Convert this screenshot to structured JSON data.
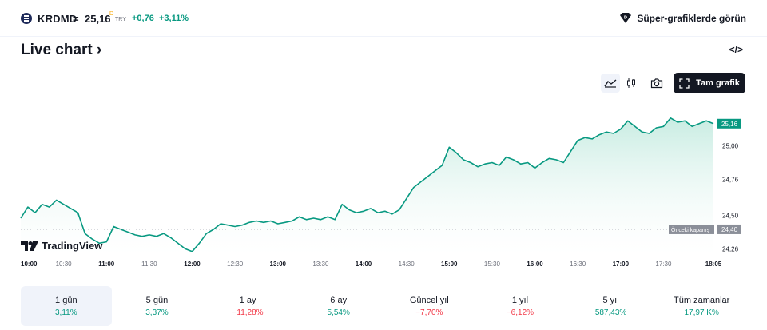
{
  "header": {
    "ticker": "KRDMD",
    "separator": "=",
    "price": "25,16",
    "delayed_mark": "D",
    "currency": "TRY",
    "change": "+0,76",
    "change_pct": "+3,11%",
    "super_charts_label": "Süper-grafiklerde görün"
  },
  "title": "Live chart",
  "title_chevron": "›",
  "embed_label": "</>",
  "toolbar": {
    "full_chart_label": "Tam grafik",
    "icons": [
      "area-chart-icon",
      "candles-icon",
      "camera-icon",
      "fullscreen-icon"
    ]
  },
  "colors": {
    "line": "#089981",
    "fill_top": "#c8ece2",
    "up": "#089981",
    "down": "#f23645",
    "text": "#131722"
  },
  "chart_data": {
    "type": "area",
    "x_ticks": [
      "10:00",
      "10:30",
      "11:00",
      "11:30",
      "12:00",
      "12:30",
      "13:00",
      "13:30",
      "14:00",
      "14:30",
      "15:00",
      "15:30",
      "16:00",
      "16:30",
      "17:00",
      "17:30",
      "18:05"
    ],
    "bold_ticks": [
      "10:00",
      "11:00",
      "12:00",
      "13:00",
      "14:00",
      "15:00",
      "16:00",
      "17:00",
      "18:05"
    ],
    "y_ticks": [
      "25,00",
      "24,76",
      "24,50",
      "24,26"
    ],
    "ylim": [
      24.21,
      25.36
    ],
    "last_price_label": "25,16",
    "prev_close": 24.4,
    "prev_close_value_label": "24,40",
    "prev_close_label": "Önceki kapanış",
    "watermark": "TradingView",
    "points": [
      [
        "10:00",
        24.48
      ],
      [
        "10:05",
        24.56
      ],
      [
        "10:10",
        24.52
      ],
      [
        "10:15",
        24.58
      ],
      [
        "10:20",
        24.56
      ],
      [
        "10:25",
        24.61
      ],
      [
        "10:30",
        24.58
      ],
      [
        "10:35",
        24.55
      ],
      [
        "10:40",
        24.52
      ],
      [
        "10:45",
        24.37
      ],
      [
        "10:50",
        24.33
      ],
      [
        "10:55",
        24.3
      ],
      [
        "11:00",
        24.31
      ],
      [
        "11:05",
        24.42
      ],
      [
        "11:10",
        24.4
      ],
      [
        "11:15",
        24.38
      ],
      [
        "11:20",
        24.36
      ],
      [
        "11:25",
        24.35
      ],
      [
        "11:30",
        24.36
      ],
      [
        "11:35",
        24.35
      ],
      [
        "11:40",
        24.37
      ],
      [
        "11:45",
        24.34
      ],
      [
        "11:50",
        24.3
      ],
      [
        "11:55",
        24.26
      ],
      [
        "12:00",
        24.24
      ],
      [
        "12:05",
        24.3
      ],
      [
        "12:10",
        24.37
      ],
      [
        "12:15",
        24.4
      ],
      [
        "12:20",
        24.44
      ],
      [
        "12:25",
        24.43
      ],
      [
        "12:30",
        24.42
      ],
      [
        "12:35",
        24.43
      ],
      [
        "12:40",
        24.45
      ],
      [
        "12:45",
        24.46
      ],
      [
        "12:50",
        24.45
      ],
      [
        "12:55",
        24.46
      ],
      [
        "13:00",
        24.44
      ],
      [
        "13:05",
        24.45
      ],
      [
        "13:10",
        24.46
      ],
      [
        "13:15",
        24.49
      ],
      [
        "13:20",
        24.47
      ],
      [
        "13:25",
        24.48
      ],
      [
        "13:30",
        24.47
      ],
      [
        "13:35",
        24.49
      ],
      [
        "13:40",
        24.47
      ],
      [
        "13:45",
        24.58
      ],
      [
        "13:50",
        24.54
      ],
      [
        "13:55",
        24.52
      ],
      [
        "14:00",
        24.53
      ],
      [
        "14:05",
        24.55
      ],
      [
        "14:10",
        24.52
      ],
      [
        "14:15",
        24.53
      ],
      [
        "14:20",
        24.51
      ],
      [
        "14:25",
        24.54
      ],
      [
        "14:30",
        24.62
      ],
      [
        "14:35",
        24.7
      ],
      [
        "14:40",
        24.74
      ],
      [
        "14:45",
        24.78
      ],
      [
        "14:50",
        24.82
      ],
      [
        "14:55",
        24.86
      ],
      [
        "15:00",
        24.99
      ],
      [
        "15:05",
        24.95
      ],
      [
        "15:10",
        24.9
      ],
      [
        "15:15",
        24.88
      ],
      [
        "15:20",
        24.85
      ],
      [
        "15:25",
        24.87
      ],
      [
        "15:30",
        24.88
      ],
      [
        "15:35",
        24.86
      ],
      [
        "15:40",
        24.92
      ],
      [
        "15:45",
        24.9
      ],
      [
        "15:50",
        24.87
      ],
      [
        "15:55",
        24.88
      ],
      [
        "16:00",
        24.84
      ],
      [
        "16:05",
        24.88
      ],
      [
        "16:10",
        24.91
      ],
      [
        "16:15",
        24.9
      ],
      [
        "16:20",
        24.88
      ],
      [
        "16:25",
        24.96
      ],
      [
        "16:30",
        25.04
      ],
      [
        "16:35",
        25.06
      ],
      [
        "16:40",
        25.05
      ],
      [
        "16:45",
        25.08
      ],
      [
        "16:50",
        25.1
      ],
      [
        "16:55",
        25.09
      ],
      [
        "17:00",
        25.12
      ],
      [
        "17:05",
        25.18
      ],
      [
        "17:10",
        25.14
      ],
      [
        "17:15",
        25.1
      ],
      [
        "17:20",
        25.09
      ],
      [
        "17:25",
        25.13
      ],
      [
        "17:30",
        25.14
      ],
      [
        "17:35",
        25.2
      ],
      [
        "17:40",
        25.17
      ],
      [
        "17:45",
        25.18
      ],
      [
        "17:50",
        25.14
      ],
      [
        "17:55",
        25.16
      ],
      [
        "18:00",
        25.18
      ],
      [
        "18:05",
        25.16
      ]
    ]
  },
  "periods": [
    {
      "label": "1 gün",
      "value": "3,11%",
      "dir": "up"
    },
    {
      "label": "5 gün",
      "value": "3,37%",
      "dir": "up"
    },
    {
      "label": "1 ay",
      "value": "−11,28%",
      "dir": "down"
    },
    {
      "label": "6 ay",
      "value": "5,54%",
      "dir": "up"
    },
    {
      "label": "Güncel yıl",
      "value": "−7,70%",
      "dir": "down"
    },
    {
      "label": "1 yıl",
      "value": "−6,12%",
      "dir": "down"
    },
    {
      "label": "5 yıl",
      "value": "587,43%",
      "dir": "up"
    },
    {
      "label": "Tüm zamanlar",
      "value": "17,97 K%",
      "dir": "up"
    }
  ]
}
